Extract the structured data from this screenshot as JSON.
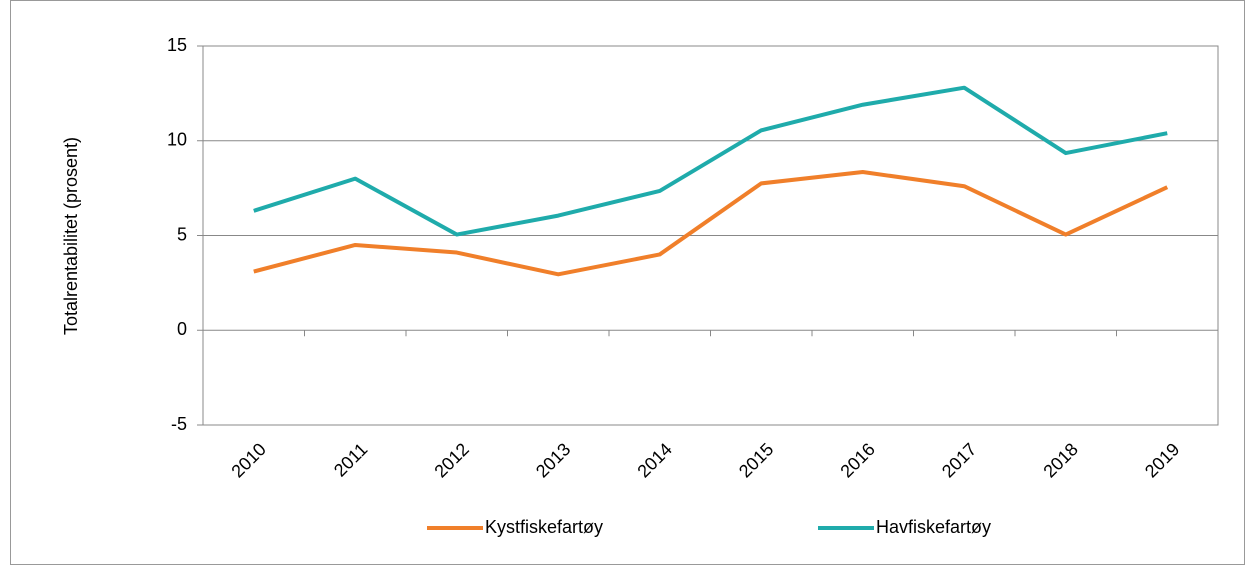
{
  "chart_data": {
    "type": "line",
    "y_label": "Totalrentabilitet (prosent)",
    "categories": [
      "2010",
      "2011",
      "2012",
      "2013",
      "2014",
      "2015",
      "2016",
      "2017",
      "2018",
      "2019"
    ],
    "series": [
      {
        "name": "Kystfiskefartøy",
        "color": "#f07f2a",
        "values": [
          3.1,
          4.5,
          4.1,
          2.95,
          4.0,
          7.75,
          8.35,
          7.6,
          5.05,
          7.55
        ]
      },
      {
        "name": "Havfiskefartøy",
        "color": "#1fabab",
        "values": [
          6.3,
          8.0,
          5.05,
          6.05,
          7.35,
          10.55,
          11.9,
          12.8,
          9.35,
          10.4
        ]
      }
    ],
    "ylim": [
      -5,
      15
    ],
    "yticks": [
      -5,
      0,
      5,
      10,
      15
    ],
    "grid": true,
    "legend": "bottom"
  }
}
